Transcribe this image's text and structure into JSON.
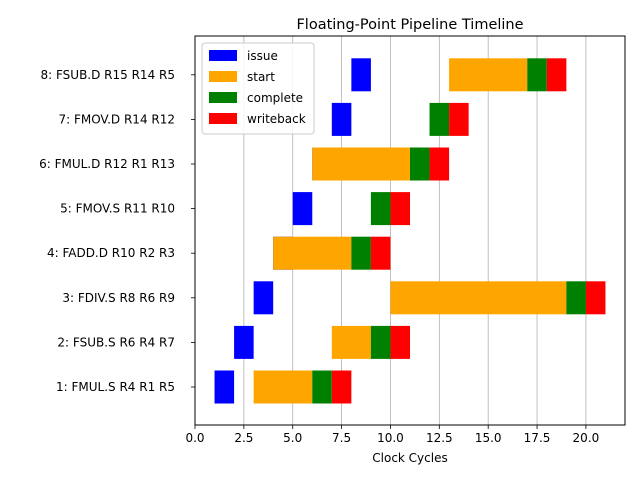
{
  "chart_data": {
    "type": "bar",
    "orientation": "horizontal",
    "title": "Floating-Point Pipeline Timeline",
    "xlabel": "Clock Cycles",
    "ylabel": "",
    "xlim": [
      0,
      22
    ],
    "x_ticks": [
      0,
      2.5,
      5,
      7.5,
      10,
      12.5,
      15,
      17.5,
      20
    ],
    "x_tick_labels": [
      "0.0",
      "2.5",
      "5.0",
      "7.5",
      "10.0",
      "12.5",
      "15.0",
      "17.5",
      "20.0"
    ],
    "grid": "vertical",
    "legend_position": "top-left",
    "categories": [
      "1: FMUL.S R4 R1 R5",
      "2: FSUB.S R6 R4 R7",
      "3: FDIV.S R8 R6 R9",
      "4: FADD.D R10 R2 R3",
      "5: FMOV.S R11 R10",
      "6: FMUL.D R12 R1 R13",
      "7: FMOV.D R14 R12",
      "8: FSUB.D R15 R14 R5"
    ],
    "series": [
      {
        "name": "issue",
        "color": "#0000ff",
        "segments": [
          [
            1,
            2
          ],
          [
            2,
            3
          ],
          [
            3,
            4
          ],
          [
            4,
            5
          ],
          [
            5,
            6
          ],
          [
            6,
            7
          ],
          [
            7,
            8
          ],
          [
            8,
            9
          ]
        ]
      },
      {
        "name": "start",
        "color": "#ffa500",
        "segments": [
          [
            3,
            6
          ],
          [
            7,
            9
          ],
          [
            10,
            19
          ],
          [
            4,
            8
          ],
          [
            9,
            9
          ],
          [
            6,
            11
          ],
          [
            12,
            12
          ],
          [
            13,
            17
          ]
        ]
      },
      {
        "name": "complete",
        "color": "#008000",
        "segments": [
          [
            6,
            7
          ],
          [
            9,
            10
          ],
          [
            19,
            20
          ],
          [
            8,
            9
          ],
          [
            9,
            10
          ],
          [
            11,
            12
          ],
          [
            12,
            13
          ],
          [
            17,
            18
          ]
        ]
      },
      {
        "name": "writeback",
        "color": "#ff0000",
        "segments": [
          [
            7,
            8
          ],
          [
            10,
            11
          ],
          [
            20,
            21
          ],
          [
            9,
            10
          ],
          [
            10,
            11
          ],
          [
            12,
            13
          ],
          [
            13,
            14
          ],
          [
            18,
            19
          ]
        ]
      }
    ]
  }
}
